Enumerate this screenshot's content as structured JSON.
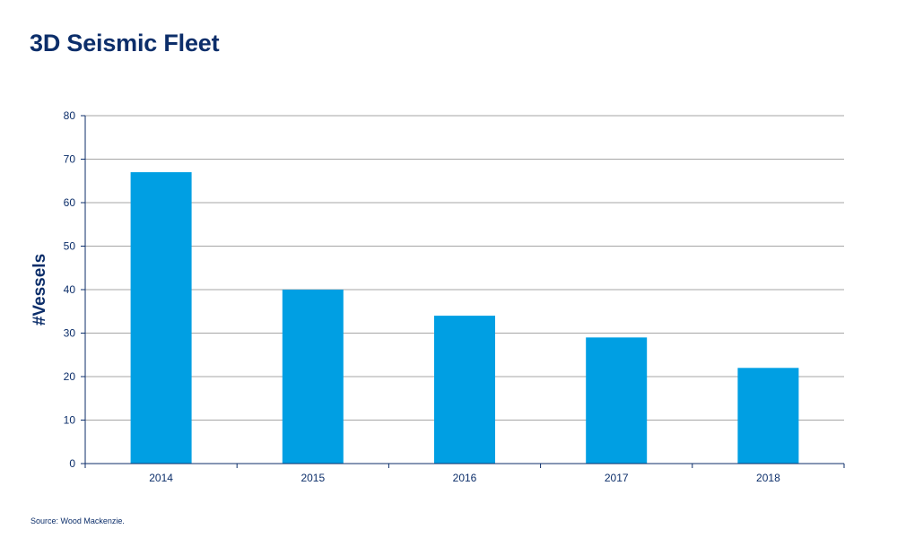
{
  "header": {
    "title": "3D Seismic Fleet"
  },
  "footer": {
    "source": "Source:  Wood Mackenzie."
  },
  "chart_data": {
    "type": "bar",
    "title": "3D Seismic Fleet",
    "xlabel": "",
    "ylabel": "#Vessels",
    "categories": [
      "2014",
      "2015",
      "2016",
      "2017",
      "2018"
    ],
    "values": [
      67,
      40,
      34,
      29,
      22
    ],
    "ylim": [
      0,
      80
    ],
    "yticks": [
      0,
      10,
      20,
      30,
      40,
      50,
      60,
      70,
      80
    ],
    "grid": true,
    "bar_color": "#009fe3",
    "text_color": "#0c2e6a",
    "grid_color": "#a6a6a6"
  }
}
